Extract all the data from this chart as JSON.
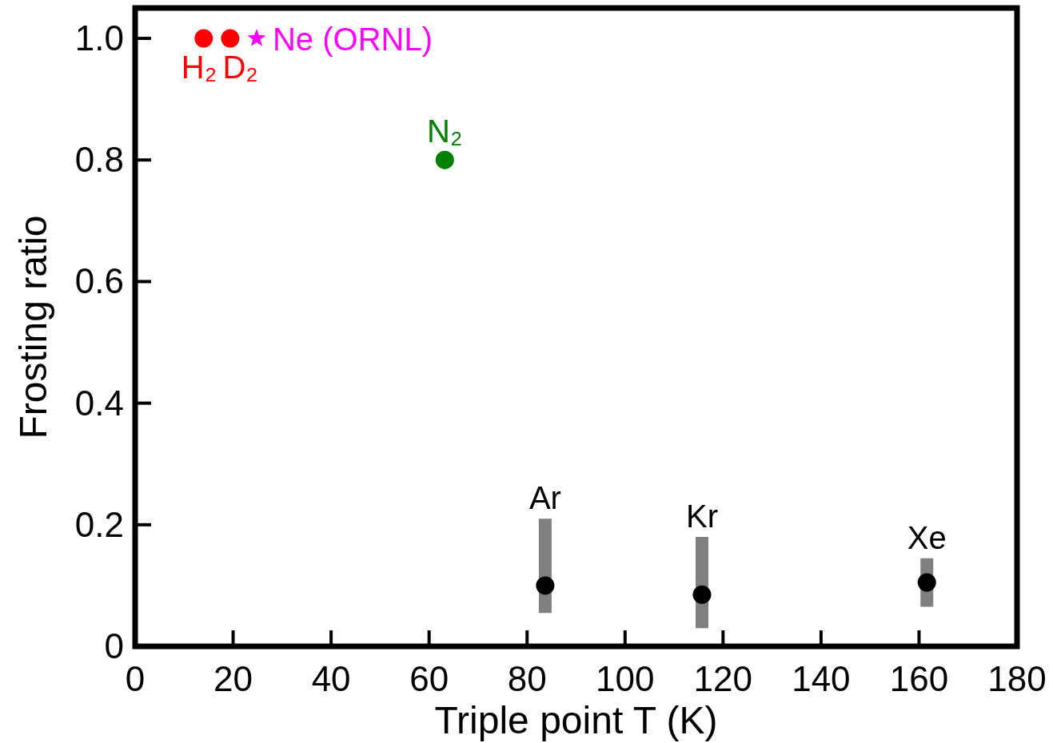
{
  "chart_data": {
    "type": "scatter",
    "xlabel": "Triple point T (K)",
    "ylabel": "Frosting ratio",
    "xlim": [
      0,
      180
    ],
    "xticks": [
      0,
      20,
      40,
      60,
      80,
      100,
      120,
      140,
      160,
      180
    ],
    "ylim": [
      0,
      1.05
    ],
    "yticks": [
      0,
      {
        "value": 0.2,
        "label": "0.2"
      },
      {
        "value": 0.4,
        "label": "0.4"
      },
      {
        "value": 0.6,
        "label": "0.6"
      },
      {
        "value": 0.8,
        "label": "0.8"
      },
      {
        "value": 1.0,
        "label": "1.0"
      }
    ],
    "grid": false,
    "legend": false,
    "marker": "circle",
    "series": [
      {
        "name": "H₂",
        "color": "#ff0000",
        "x": [
          14
        ],
        "values": [
          1.0
        ]
      },
      {
        "name": "D₂",
        "color": "#ff0000",
        "x": [
          19.4
        ],
        "values": [
          1.0
        ]
      },
      {
        "name": "Ne (ORNL)",
        "color": "#ff00ff",
        "marker": "star",
        "x": [
          24.8
        ],
        "values": [
          1.0
        ]
      },
      {
        "name": "N₂",
        "color": "#008000",
        "x": [
          63.2
        ],
        "values": [
          0.8
        ]
      },
      {
        "name": "Ar",
        "color": "#000000",
        "x": [
          83.7
        ],
        "values": [
          0.1
        ],
        "errors": [
          [
            0.055,
            0.21
          ]
        ]
      },
      {
        "name": "Kr",
        "color": "#000000",
        "x": [
          115.7
        ],
        "values": [
          0.085
        ],
        "errors": [
          [
            0.03,
            0.18
          ]
        ]
      },
      {
        "name": "Xe",
        "color": "#000000",
        "x": [
          161.6
        ],
        "values": [
          0.105
        ],
        "errors": [
          [
            0.065,
            0.145
          ]
        ]
      }
    ]
  }
}
